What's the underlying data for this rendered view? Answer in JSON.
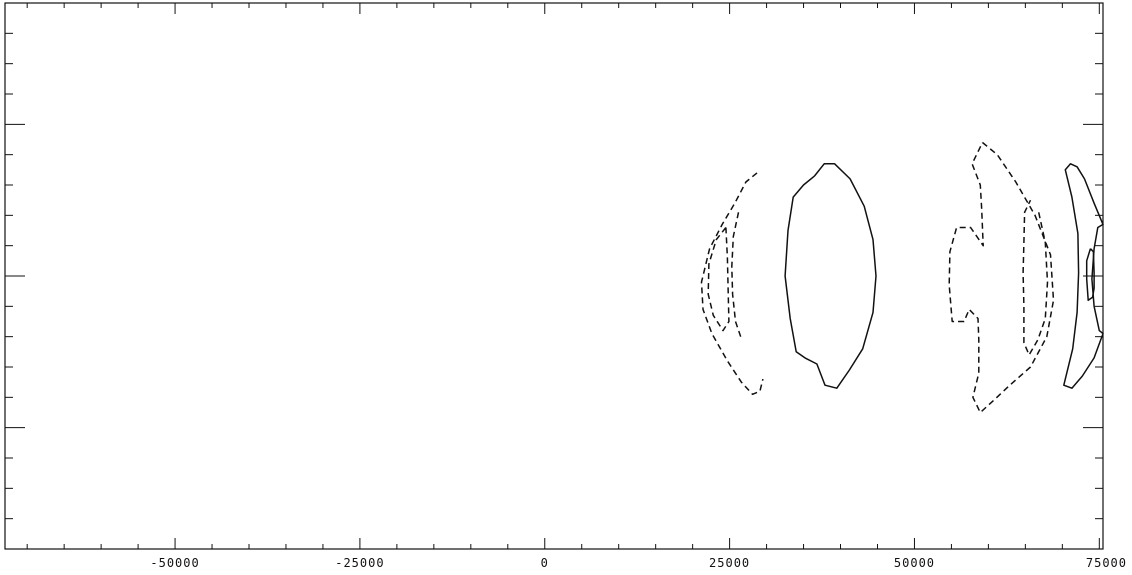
{
  "chart_data": {
    "type": "contour",
    "title": "",
    "xlabel": "",
    "ylabel": "",
    "xlim": [
      -73000,
      75500
    ],
    "ylim": [
      -9,
      9
    ],
    "grid": false,
    "legend": "none",
    "x_ticks_major": [
      -50000,
      -25000,
      0,
      25000,
      50000,
      75000
    ],
    "x_tick_labels": [
      "-50000",
      "-25000",
      "0",
      "25000",
      "50000",
      "75000"
    ],
    "x_ticks_minor_step": 5000,
    "y_ticks_major": [
      -5,
      0,
      5
    ],
    "y_ticks_minor_step": 1,
    "contours": [
      {
        "style": "dashed",
        "points": [
          [
            28700,
            3.4
          ],
          [
            27200,
            3.1
          ],
          [
            25700,
            2.4
          ],
          [
            24000,
            1.7
          ],
          [
            22300,
            0.9
          ],
          [
            21200,
            -0.2
          ],
          [
            21400,
            -1.1
          ],
          [
            22600,
            -1.9
          ],
          [
            24700,
            -2.8
          ],
          [
            26600,
            -3.5
          ],
          [
            28100,
            -3.9
          ],
          [
            29100,
            -3.8
          ],
          [
            29500,
            -3.4
          ]
        ]
      },
      {
        "style": "dashed",
        "points": [
          [
            24500,
            1.6
          ],
          [
            23200,
            1.2
          ],
          [
            22200,
            0.4
          ],
          [
            22100,
            -0.6
          ],
          [
            22800,
            -1.3
          ],
          [
            24100,
            -1.8
          ],
          [
            24900,
            -1.5
          ],
          [
            24800,
            -0.4
          ],
          [
            24700,
            0.6
          ],
          [
            24500,
            1.6
          ]
        ]
      },
      {
        "style": "dashed",
        "points": [
          [
            26200,
            2.1
          ],
          [
            25500,
            1.3
          ],
          [
            25300,
            0.3
          ],
          [
            25400,
            -0.6
          ],
          [
            25800,
            -1.5
          ],
          [
            26500,
            -2.0
          ]
        ]
      },
      {
        "style": "solid",
        "points": [
          [
            36500,
            3.3
          ],
          [
            37800,
            3.7
          ],
          [
            39200,
            3.7
          ],
          [
            41300,
            3.2
          ],
          [
            43200,
            2.3
          ],
          [
            44400,
            1.2
          ],
          [
            44800,
            0.0
          ],
          [
            44400,
            -1.2
          ],
          [
            43000,
            -2.4
          ],
          [
            41200,
            -3.1
          ],
          [
            39500,
            -3.7
          ],
          [
            37900,
            -3.6
          ],
          [
            36800,
            -2.9
          ],
          [
            35200,
            -2.7
          ],
          [
            34000,
            -2.5
          ],
          [
            33200,
            -1.4
          ],
          [
            32500,
            0.0
          ],
          [
            32900,
            1.5
          ],
          [
            33600,
            2.6
          ],
          [
            35000,
            3.0
          ],
          [
            36500,
            3.3
          ]
        ]
      },
      {
        "style": "dashed",
        "points": [
          [
            59200,
            4.4
          ],
          [
            61200,
            4.0
          ],
          [
            63700,
            3.1
          ],
          [
            66300,
            2.0
          ],
          [
            68400,
            0.7
          ],
          [
            68800,
            -0.8
          ],
          [
            67900,
            -2.0
          ],
          [
            65700,
            -3.0
          ],
          [
            62900,
            -3.6
          ],
          [
            60700,
            -4.1
          ],
          [
            58900,
            -4.5
          ],
          [
            57900,
            -4.0
          ],
          [
            58700,
            -3.2
          ],
          [
            58700,
            -2.1
          ],
          [
            58600,
            -1.4
          ],
          [
            57400,
            -1.1
          ],
          [
            56700,
            -1.5
          ],
          [
            55100,
            -1.5
          ],
          [
            54700,
            -0.3
          ],
          [
            54800,
            0.8
          ],
          [
            55700,
            1.6
          ],
          [
            57600,
            1.6
          ],
          [
            59300,
            1.0
          ],
          [
            59100,
            2.2
          ],
          [
            58900,
            3.0
          ],
          [
            57800,
            3.7
          ],
          [
            59200,
            4.4
          ]
        ]
      },
      {
        "style": "dashed",
        "points": [
          [
            66800,
            2.1
          ],
          [
            67700,
            1.1
          ],
          [
            68000,
            -0.2
          ],
          [
            67700,
            -1.4
          ],
          [
            66700,
            -2.1
          ],
          [
            65500,
            -2.6
          ],
          [
            64800,
            -2.2
          ],
          [
            64800,
            -1.0
          ],
          [
            64700,
            0.1
          ],
          [
            64800,
            1.1
          ],
          [
            64900,
            2.1
          ],
          [
            65700,
            2.5
          ]
        ]
      },
      {
        "style": "solid",
        "points": [
          [
            73000,
            3.2
          ],
          [
            74300,
            2.4
          ],
          [
            75500,
            1.7
          ],
          [
            74800,
            1.6
          ],
          [
            74300,
            0.9
          ],
          [
            74000,
            -0.1
          ],
          [
            74300,
            -1.0
          ],
          [
            75000,
            -1.8
          ],
          [
            75500,
            -1.9
          ],
          [
            74300,
            -2.7
          ],
          [
            72700,
            -3.3
          ],
          [
            71300,
            -3.7
          ],
          [
            70200,
            -3.6
          ],
          [
            71400,
            -2.4
          ],
          [
            72000,
            -1.2
          ],
          [
            72200,
            0.1
          ],
          [
            72100,
            1.4
          ],
          [
            71300,
            2.6
          ],
          [
            70400,
            3.5
          ],
          [
            71100,
            3.7
          ],
          [
            72000,
            3.6
          ],
          [
            73000,
            3.2
          ]
        ]
      },
      {
        "style": "solid",
        "points": [
          [
            73800,
            0.9
          ],
          [
            74200,
            0.8
          ],
          [
            74300,
            0.1
          ],
          [
            74300,
            -0.4
          ],
          [
            74100,
            -0.7
          ],
          [
            73500,
            -0.8
          ],
          [
            73300,
            -0.1
          ],
          [
            73300,
            0.5
          ],
          [
            73800,
            0.9
          ]
        ]
      }
    ]
  }
}
